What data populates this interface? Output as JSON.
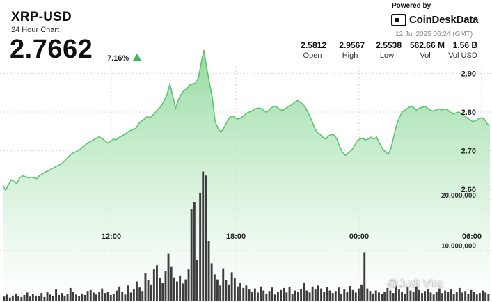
{
  "header": {
    "title": "XRP-USD",
    "subtitle": "24 Hour Chart",
    "price": "2.7662",
    "change": "7.16%"
  },
  "branding": {
    "powered_by": "Powered by",
    "name": "CoinDeskData",
    "timestamp": "12 Jul 2025 06:24 (GMT)"
  },
  "stats": [
    {
      "value": "2.5812",
      "label": "Open"
    },
    {
      "value": "2.9567",
      "label": "High"
    },
    {
      "value": "2.5538",
      "label": "Low"
    },
    {
      "value": "562.66 M",
      "label": "Vol"
    },
    {
      "value": "1.56 B",
      "label": "Vol USD"
    }
  ],
  "watermark": "@Judi Vira",
  "colors": {
    "line": "#5cc46f",
    "fill_top": "#8fd99b",
    "fill_bottom": "#ffffff",
    "volume_bar": "#3d3d3d",
    "up_arrow": "#3fb65c",
    "grid": "#d9d9d9"
  },
  "chart_data": {
    "type": "line",
    "x_tick_labels": [
      "12:00",
      "18:00",
      "00:00",
      "06:00"
    ],
    "price_tick_labels": [
      "2.60",
      "2.70",
      "2.80",
      "2.90"
    ],
    "volume_tick_labels": [
      "10,000,000",
      "20,000,000"
    ],
    "price_range": [
      2.55,
      2.96
    ],
    "volume_range": [
      0,
      26500000
    ],
    "grid": true,
    "price_series": [
      2.61,
      2.598,
      2.612,
      2.625,
      2.62,
      2.615,
      2.63,
      2.635,
      2.633,
      2.63,
      2.632,
      2.63,
      2.628,
      2.636,
      2.64,
      2.645,
      2.648,
      2.652,
      2.656,
      2.66,
      2.663,
      2.668,
      2.675,
      2.683,
      2.69,
      2.695,
      2.698,
      2.702,
      2.708,
      2.714,
      2.72,
      2.724,
      2.728,
      2.732,
      2.736,
      2.732,
      2.726,
      2.72,
      2.724,
      2.73,
      2.728,
      2.734,
      2.738,
      2.742,
      2.748,
      2.752,
      2.755,
      2.758,
      2.77,
      2.776,
      2.782,
      2.788,
      2.785,
      2.792,
      2.8,
      2.808,
      2.815,
      2.83,
      2.845,
      2.872,
      2.842,
      2.81,
      2.832,
      2.846,
      2.856,
      2.86,
      2.87,
      2.873,
      2.875,
      2.885,
      2.925,
      2.96,
      2.915,
      2.875,
      2.835,
      2.775,
      2.758,
      2.748,
      2.758,
      2.772,
      2.785,
      2.79,
      2.785,
      2.782,
      2.784,
      2.79,
      2.796,
      2.8,
      2.803,
      2.808,
      2.81,
      2.81,
      2.805,
      2.8,
      2.805,
      2.812,
      2.815,
      2.812,
      2.805,
      2.805,
      2.81,
      2.815,
      2.818,
      2.825,
      2.83,
      2.826,
      2.82,
      2.81,
      2.795,
      2.78,
      2.76,
      2.748,
      2.742,
      2.735,
      2.73,
      2.738,
      2.742,
      2.74,
      2.73,
      2.71,
      2.695,
      2.688,
      2.694,
      2.7,
      2.71,
      2.725,
      2.73,
      2.732,
      2.728,
      2.73,
      2.735,
      2.73,
      2.735,
      2.72,
      2.706,
      2.698,
      2.69,
      2.705,
      2.735,
      2.765,
      2.785,
      2.8,
      2.805,
      2.81,
      2.815,
      2.812,
      2.805,
      2.81,
      2.812,
      2.815,
      2.81,
      2.805,
      2.802,
      2.806,
      2.808,
      2.805,
      2.808,
      2.806,
      2.8,
      2.795,
      2.798,
      2.8,
      2.795,
      2.79,
      2.785,
      2.78,
      2.775,
      2.778,
      2.782,
      2.785,
      2.782,
      2.77,
      2.766
    ],
    "volume_series": [
      0.8,
      1.2,
      0.6,
      1.0,
      1.4,
      0.9,
      0.7,
      1.1,
      1.6,
      0.8,
      1.3,
      1.0,
      0.9,
      1.5,
      0.7,
      1.8,
      1.2,
      0.9,
      2.2,
      1.1,
      1.5,
      1.0,
      1.3,
      2.5,
      1.7,
      1.2,
      0.9,
      1.4,
      1.1,
      1.9,
      2.1,
      1.6,
      1.2,
      1.8,
      2.4,
      1.5,
      1.7,
      1.1,
      1.3,
      2.0,
      2.8,
      1.8,
      1.2,
      3.0,
      1.6,
      2.2,
      3.8,
      2.6,
      1.9,
      5.4,
      4.0,
      3.2,
      6.2,
      7.0,
      4.5,
      3.5,
      5.8,
      9.3,
      6.8,
      4.6,
      3.8,
      5.0,
      3.4,
      4.2,
      6.2,
      18.2,
      19.5,
      8.0,
      21.4,
      25.6,
      24.8,
      11.8,
      7.4,
      5.2,
      4.2,
      3.0,
      6.4,
      4.0,
      3.2,
      5.6,
      4.4,
      2.8,
      3.6,
      2.5,
      3.0,
      2.2,
      1.8,
      2.4,
      1.6,
      2.8,
      2.0,
      1.4,
      1.9,
      2.6,
      1.2,
      1.8,
      2.1,
      2.5,
      1.6,
      2.7,
      1.3,
      2.0,
      1.7,
      2.3,
      3.6,
      2.0,
      1.6,
      2.8,
      2.2,
      3.0,
      2.4,
      1.8,
      2.7,
      2.0,
      1.5,
      1.9,
      2.6,
      1.4,
      2.2,
      1.7,
      2.9,
      2.1,
      1.6,
      2.4,
      3.2,
      9.6,
      2.4,
      1.9,
      1.4,
      2.0,
      1.6,
      1.3,
      1.8,
      2.5,
      2.0,
      1.5,
      3.1,
      2.2,
      1.8,
      1.4,
      2.6,
      2.0,
      1.7,
      2.8,
      2.1,
      1.5,
      1.9,
      2.3,
      1.6,
      1.2,
      1.8,
      2.4,
      1.5,
      2.0,
      1.7,
      2.2,
      1.3,
      1.8,
      2.5,
      1.6,
      1.9,
      1.4,
      2.1,
      1.7,
      1.2,
      1.5,
      2.0,
      1.6,
      1.3
    ]
  }
}
